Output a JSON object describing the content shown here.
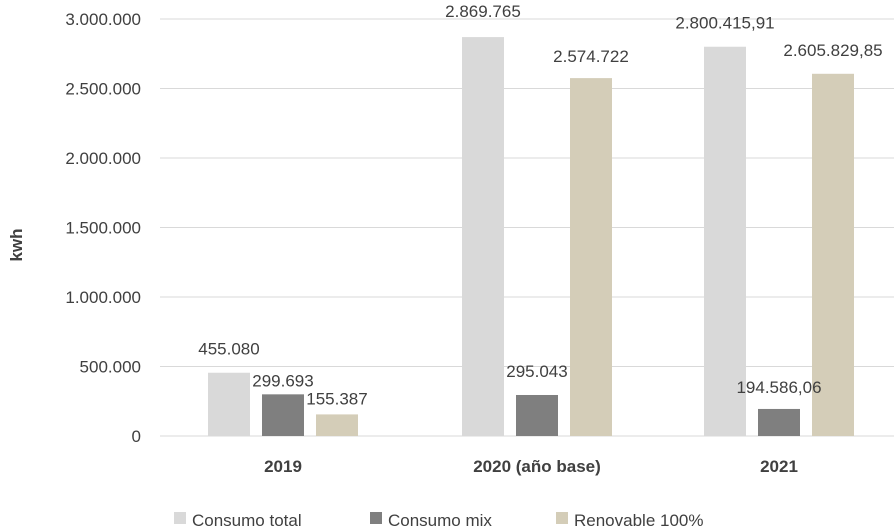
{
  "chart_data": {
    "type": "bar",
    "title": "",
    "xlabel": "",
    "ylabel": "kwh",
    "ylim": [
      0,
      3000000
    ],
    "yticks": [
      0,
      500000,
      1000000,
      1500000,
      2000000,
      2500000,
      3000000
    ],
    "ytick_labels": [
      "0",
      "500.000",
      "1.000.000",
      "1.500.000",
      "2.000.000",
      "2.500.000",
      "3.000.000"
    ],
    "grid": true,
    "legend_position": "bottom",
    "categories": [
      "2019",
      "2020 (año base)",
      "2021"
    ],
    "series": [
      {
        "name": "Consumo total",
        "color": "#d9d9d9",
        "values": [
          455080,
          2869765,
          2800415.91
        ],
        "labels": [
          "455.080",
          "2.869.765",
          "2.800.415,91"
        ]
      },
      {
        "name": "Consumo mix",
        "color": "#7f7f7f",
        "values": [
          299693,
          295043,
          194586.06
        ],
        "labels": [
          "299.693",
          "295.043",
          "194.586,06"
        ]
      },
      {
        "name": "Renovable 100%",
        "color": "#d4cdb8",
        "values": [
          155387,
          2574722,
          2605829.85
        ],
        "labels": [
          "155.387",
          "2.574.722",
          "2.605.829,85"
        ]
      }
    ]
  }
}
